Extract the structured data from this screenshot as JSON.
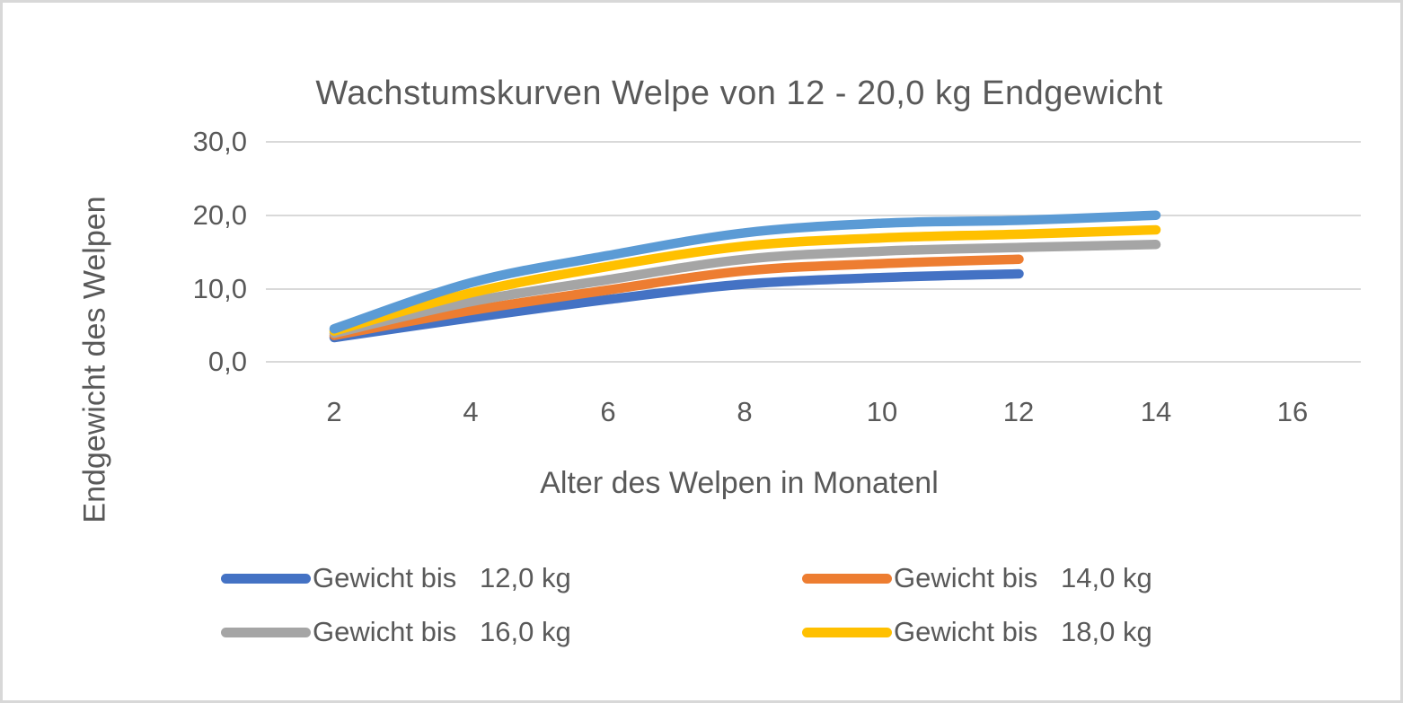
{
  "window": {
    "background_color": "#ffffff",
    "border_color": "#d8d8d8"
  },
  "chart": {
    "title": "Wachstumskurven Welpe von 12 - 20,0 kg Endgewicht",
    "text_color": "#595959",
    "gridline_color": "#d9d9d9",
    "y_axis": {
      "title": "Endgewicht des Welpen",
      "ticks": [
        "30,0",
        "20,0",
        "10,0",
        "0,0"
      ]
    },
    "x_axis": {
      "title": "Alter des Welpen in Monatenl",
      "ticks": [
        "2",
        "4",
        "6",
        "8",
        "10",
        "12",
        "14",
        "16"
      ]
    },
    "legend": {
      "items": [
        {
          "label": "Gewicht bis   12,0 kg",
          "color": "#4472C4"
        },
        {
          "label": "Gewicht bis   14,0 kg",
          "color": "#ED7D31"
        },
        {
          "label": "Gewicht bis   16,0 kg",
          "color": "#A5A5A5"
        },
        {
          "label": "Gewicht bis   18,0 kg",
          "color": "#FFC000"
        }
      ]
    }
  },
  "chart_data": {
    "type": "line",
    "title": "Wachstumskurven Welpe von 12 - 20,0 kg Endgewicht",
    "xlabel": "Alter des Welpen in Monatenl",
    "ylabel": "Endgewicht des Welpen",
    "xlim": [
      1,
      17
    ],
    "ylim": [
      0,
      30
    ],
    "x_ticks": [
      2,
      4,
      6,
      8,
      10,
      12,
      14,
      16
    ],
    "y_ticks": [
      0,
      10,
      20,
      30
    ],
    "grid": "horizontal",
    "legend_position": "bottom",
    "line_style": "smooth, thick, round caps",
    "series": [
      {
        "name": "Gewicht bis   12,0 kg",
        "color": "#4472C4",
        "legend_visible": true,
        "x": [
          2,
          4,
          6,
          8,
          10,
          12
        ],
        "y": [
          3.3,
          6.0,
          8.5,
          10.6,
          11.5,
          12.0
        ]
      },
      {
        "name": "Gewicht bis   14,0 kg",
        "color": "#ED7D31",
        "legend_visible": true,
        "x": [
          2,
          4,
          6,
          8,
          10,
          12
        ],
        "y": [
          3.6,
          7.0,
          9.8,
          12.4,
          13.4,
          14.0
        ]
      },
      {
        "name": "Gewicht bis   16,0 kg",
        "color": "#A5A5A5",
        "legend_visible": true,
        "x": [
          2,
          4,
          6,
          8,
          10,
          12,
          14
        ],
        "y": [
          3.9,
          8.2,
          11.2,
          14.0,
          15.1,
          15.6,
          16.0
        ]
      },
      {
        "name": "Gewicht bis   18,0 kg",
        "color": "#FFC000",
        "legend_visible": true,
        "x": [
          2,
          4,
          6,
          8,
          10,
          12,
          14
        ],
        "y": [
          4.2,
          9.4,
          13.0,
          15.8,
          16.9,
          17.4,
          18.0
        ]
      },
      {
        "name": "",
        "color": "#5B9BD5",
        "legend_visible": false,
        "x": [
          2,
          4,
          6,
          8,
          10,
          12,
          14
        ],
        "y": [
          4.5,
          10.8,
          14.5,
          17.6,
          18.9,
          19.3,
          20.0
        ]
      }
    ]
  }
}
